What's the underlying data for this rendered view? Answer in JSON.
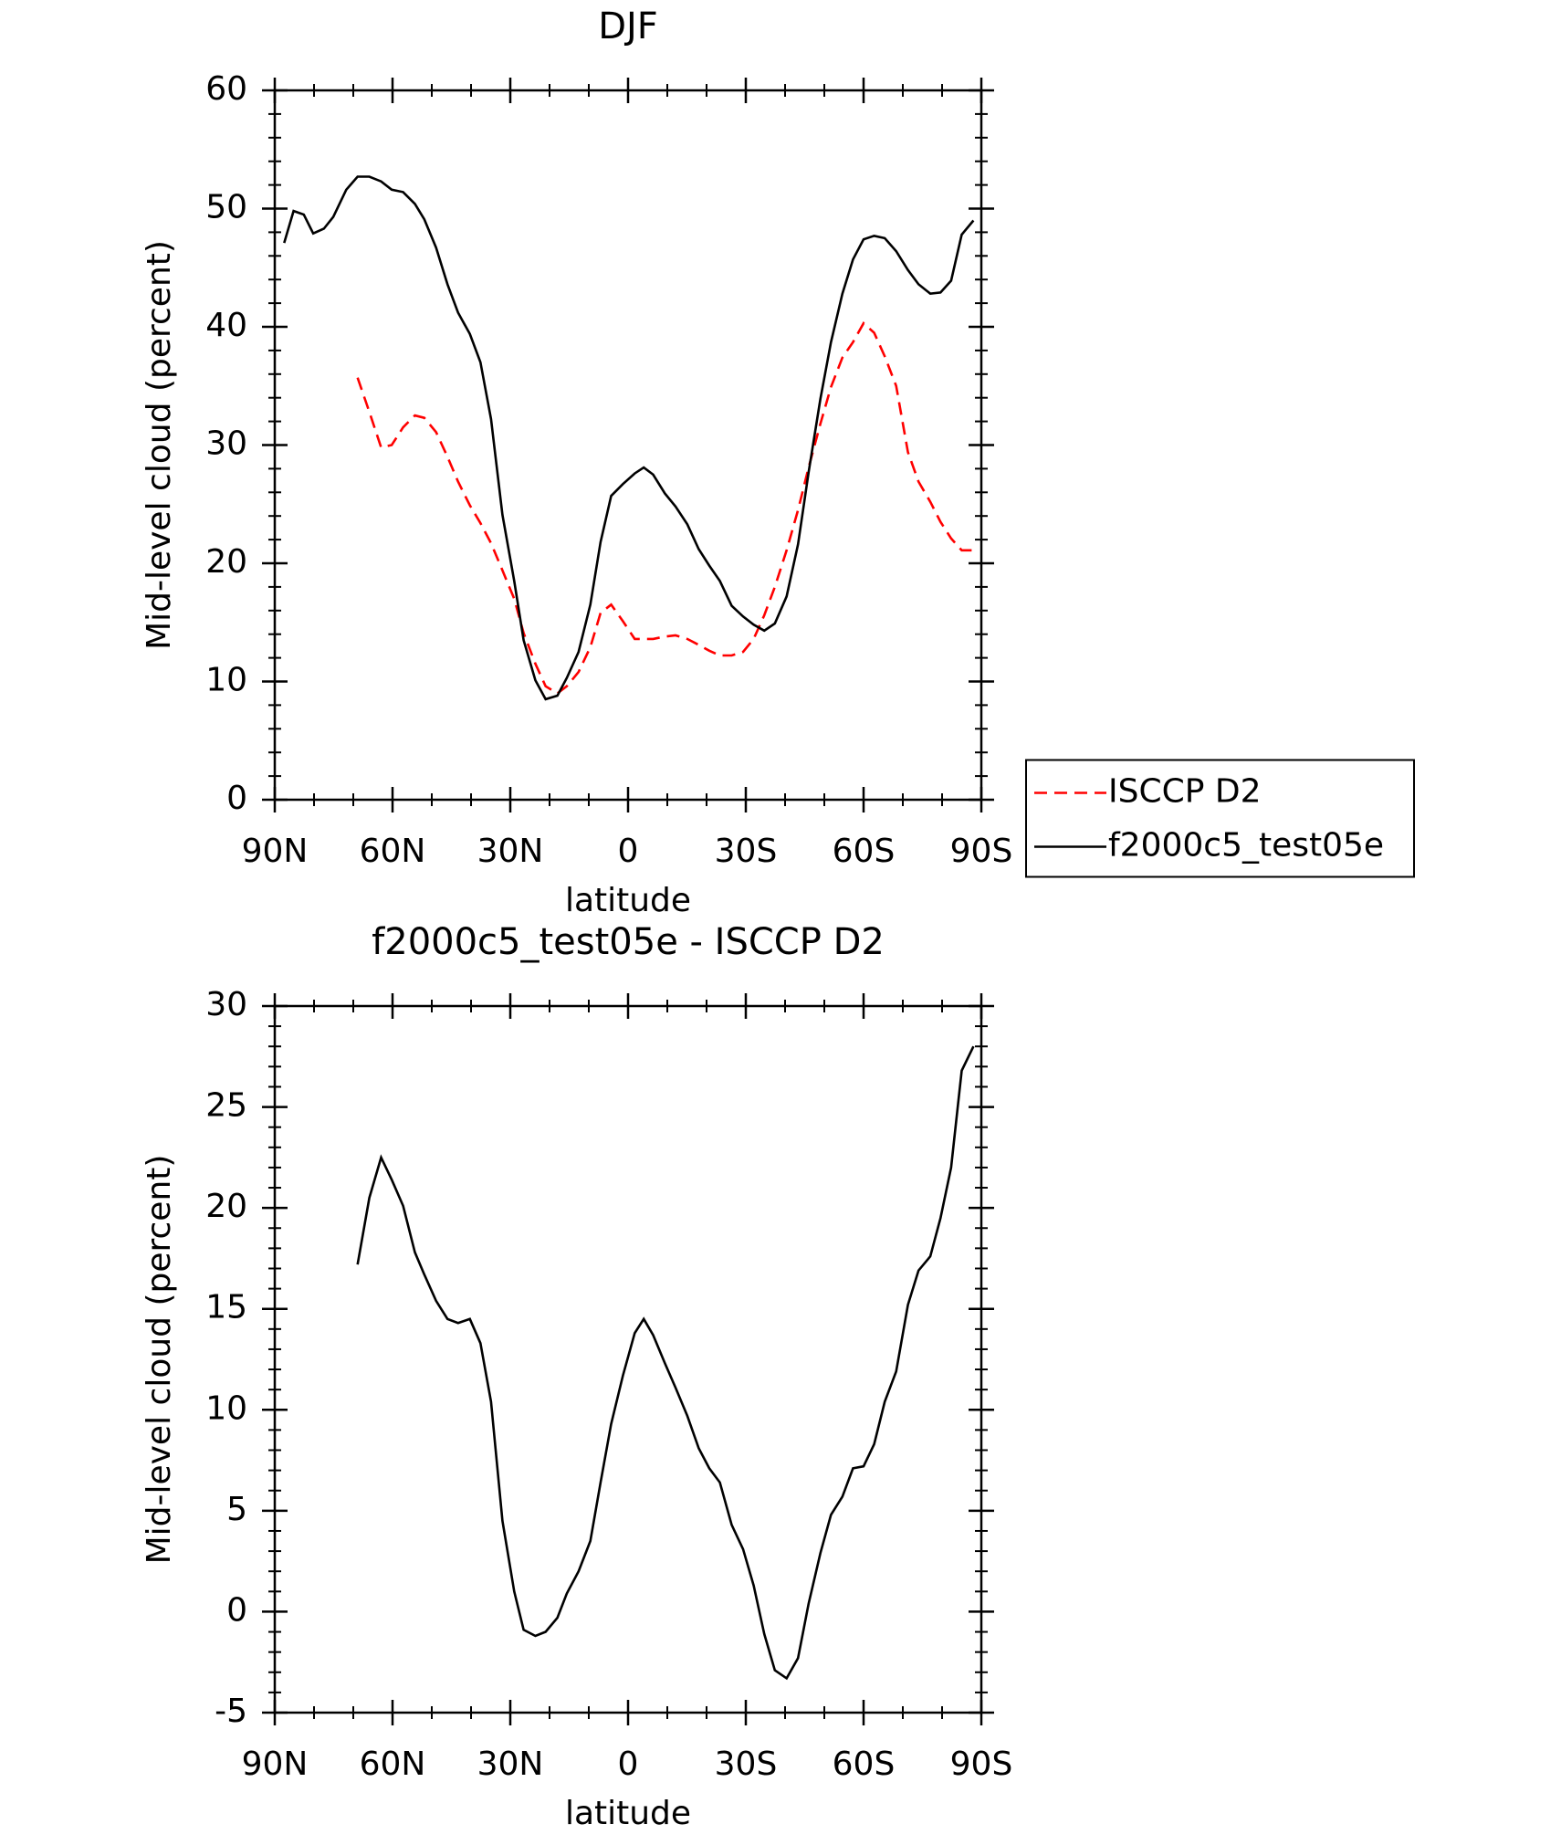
{
  "chart_data": [
    {
      "type": "line",
      "title": "DJF",
      "xlabel": "latitude",
      "ylabel": "Mid-level cloud (percent)",
      "x": [
        87.6,
        85.2,
        82.6,
        80.2,
        77.5,
        75.1,
        71.8,
        68.9,
        65.9,
        62.9,
        60.2,
        57.3,
        54.3,
        51.9,
        48.9,
        46.0,
        43.3,
        40.3,
        37.6,
        34.9,
        32.0,
        29.0,
        26.6,
        23.6,
        21.0,
        18.0,
        15.6,
        12.6,
        9.6,
        7.0,
        4.3,
        1.3,
        -1.7,
        -4.0,
        -6.4,
        -9.4,
        -12.1,
        -15.1,
        -18.0,
        -20.7,
        -23.4,
        -26.4,
        -29.3,
        -32.0,
        -34.7,
        -37.4,
        -40.4,
        -43.3,
        -46.0,
        -49.0,
        -51.7,
        -54.6,
        -57.3,
        -60.0,
        -62.7,
        -65.4,
        -68.3,
        -71.3,
        -74.0,
        -77.0,
        -79.6,
        -82.3,
        -85.0,
        -88.0
      ],
      "series": [
        {
          "name": "ISCCP D2",
          "color": "#ff0000",
          "dashed": true,
          "values": [
            null,
            null,
            null,
            null,
            null,
            null,
            null,
            35.7,
            32.8,
            29.8,
            30.0,
            31.5,
            32.5,
            32.3,
            31.1,
            29.0,
            26.9,
            24.9,
            23.4,
            21.7,
            19.4,
            17.0,
            14.1,
            11.5,
            9.6,
            9.0,
            9.6,
            10.8,
            12.9,
            15.8,
            16.5,
            15.1,
            13.6,
            13.6,
            13.6,
            13.8,
            13.9,
            13.6,
            13.1,
            12.6,
            12.2,
            12.2,
            12.5,
            13.6,
            15.6,
            18.0,
            21.1,
            24.5,
            28.1,
            31.8,
            34.9,
            37.4,
            38.7,
            40.3,
            39.5,
            37.5,
            35.0,
            29.4,
            26.9,
            25.2,
            23.5,
            22.1,
            21.1,
            21.1
          ]
        },
        {
          "name": "f2000c5_test05e",
          "color": "#000000",
          "dashed": false,
          "values": [
            47.1,
            49.8,
            49.5,
            47.9,
            48.3,
            49.3,
            51.6,
            52.7,
            52.7,
            52.3,
            51.6,
            51.4,
            50.4,
            49.1,
            46.7,
            43.6,
            41.2,
            39.4,
            37.0,
            32.2,
            24.1,
            18.5,
            13.5,
            10.1,
            8.5,
            8.8,
            10.3,
            12.5,
            16.5,
            21.8,
            25.7,
            26.7,
            27.6,
            28.1,
            27.5,
            25.9,
            24.8,
            23.3,
            21.2,
            19.8,
            18.5,
            16.4,
            15.5,
            14.8,
            14.3,
            14.9,
            17.2,
            21.6,
            27.7,
            33.9,
            38.7,
            42.8,
            45.7,
            47.4,
            47.7,
            47.5,
            46.4,
            44.8,
            43.6,
            42.8,
            42.9,
            43.9,
            47.8,
            49.0
          ]
        }
      ],
      "xlim": [
        90,
        -90
      ],
      "xticks": [
        {
          "value": 90,
          "label": "90N"
        },
        {
          "value": 60,
          "label": "60N"
        },
        {
          "value": 30,
          "label": "30N"
        },
        0,
        {
          "value": -30,
          "label": "30S"
        },
        {
          "value": -60,
          "label": "60S"
        },
        {
          "value": -90,
          "label": "90S"
        }
      ],
      "ylim": [
        0,
        60
      ],
      "yticks": [
        0,
        10,
        20,
        30,
        40,
        50,
        60
      ],
      "legend": "right"
    },
    {
      "type": "line",
      "title": "f2000c5_test05e - ISCCP D2",
      "xlabel": "latitude",
      "ylabel": "Mid-level cloud (percent)",
      "x": [
        87.6,
        85.2,
        82.6,
        80.2,
        77.5,
        75.1,
        71.8,
        68.9,
        65.9,
        62.9,
        60.2,
        57.3,
        54.3,
        51.9,
        48.9,
        46.0,
        43.3,
        40.3,
        37.6,
        34.9,
        32.0,
        29.0,
        26.6,
        23.6,
        21.0,
        18.0,
        15.6,
        12.6,
        9.6,
        7.0,
        4.3,
        1.3,
        -1.7,
        -4.0,
        -6.4,
        -9.4,
        -12.1,
        -15.1,
        -18.0,
        -20.7,
        -23.4,
        -26.4,
        -29.3,
        -32.0,
        -34.7,
        -37.4,
        -40.4,
        -43.3,
        -46.0,
        -49.0,
        -51.7,
        -54.6,
        -57.3,
        -60.0,
        -62.7,
        -65.4,
        -68.3,
        -71.3,
        -74.0,
        -77.0,
        -79.6,
        -82.3,
        -85.0,
        -88.0
      ],
      "values": [
        null,
        null,
        null,
        null,
        null,
        null,
        null,
        17.2,
        20.5,
        22.5,
        21.4,
        20.1,
        17.8,
        16.7,
        15.4,
        14.5,
        14.3,
        14.5,
        13.3,
        10.4,
        4.5,
        1.0,
        -0.9,
        -1.2,
        -1.0,
        -0.3,
        0.9,
        2.0,
        3.5,
        6.4,
        9.3,
        11.7,
        13.8,
        14.5,
        13.7,
        12.3,
        11.1,
        9.7,
        8.1,
        7.1,
        6.4,
        4.3,
        3.1,
        1.3,
        -1.1,
        -2.9,
        -3.3,
        -2.3,
        0.4,
        2.9,
        4.8,
        5.7,
        7.1,
        7.2,
        8.3,
        10.4,
        11.9,
        15.2,
        16.9,
        17.6,
        19.5,
        22.0,
        26.8,
        28.0
      ],
      "color": "#000000",
      "xlim": [
        90,
        -90
      ],
      "xticks": [
        {
          "value": 90,
          "label": "90N"
        },
        {
          "value": 60,
          "label": "60N"
        },
        {
          "value": 30,
          "label": "30N"
        },
        0,
        {
          "value": -30,
          "label": "30S"
        },
        {
          "value": -60,
          "label": "60S"
        },
        {
          "value": -90,
          "label": "90S"
        }
      ],
      "ylim": [
        -5,
        30
      ],
      "yticks": [
        -5,
        0,
        5,
        10,
        15,
        20,
        25,
        30
      ]
    }
  ]
}
